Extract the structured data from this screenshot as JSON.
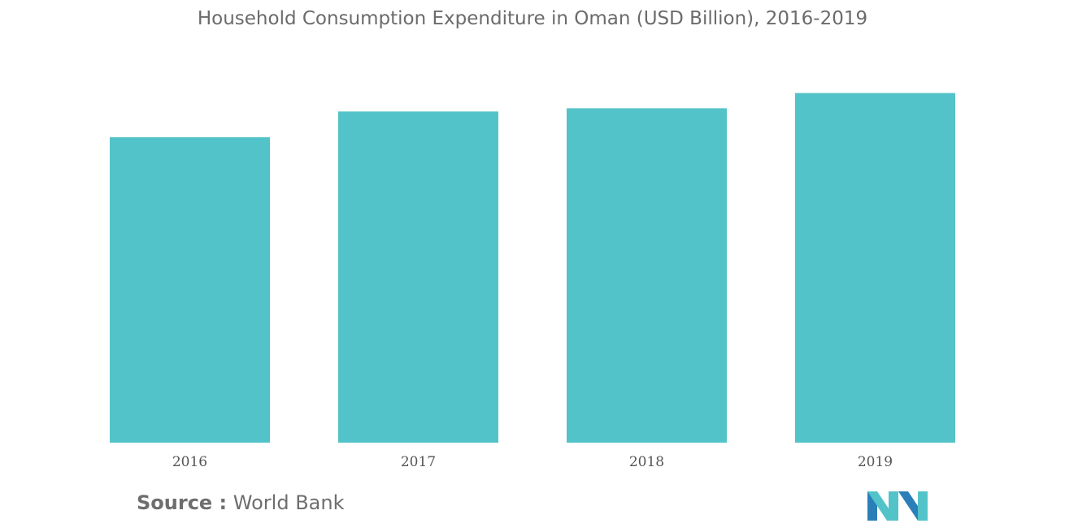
{
  "chart_data": {
    "type": "bar",
    "title": "Household Consumption Expenditure in Oman (USD Billion), 2016-2019",
    "categories": [
      "2016",
      "2017",
      "2018",
      "2019"
    ],
    "values": [
      38,
      41.2,
      41.6,
      43.5
    ],
    "ylim": [
      0,
      48
    ],
    "bar_color": "#52c3c9",
    "grid": false,
    "legend": "none"
  },
  "source": {
    "label": "Source :",
    "text": "World Bank"
  },
  "logo": {
    "icon": "mordor-intelligence-logo",
    "colors": [
      "#2a7fb8",
      "#52c3c9"
    ]
  }
}
